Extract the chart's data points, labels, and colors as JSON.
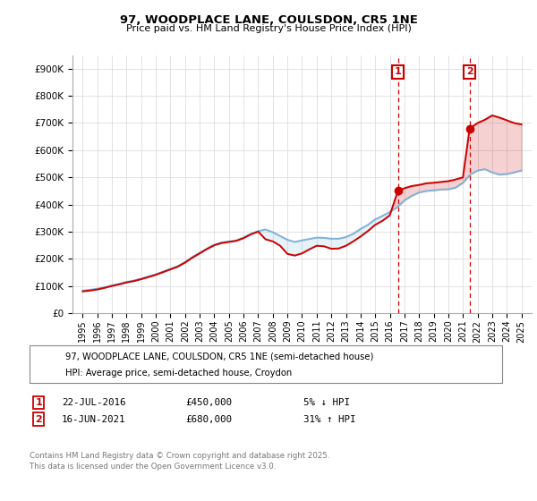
{
  "title1": "97, WOODPLACE LANE, COULSDON, CR5 1NE",
  "title2": "Price paid vs. HM Land Registry's House Price Index (HPI)",
  "legend1": "97, WOODPLACE LANE, COULSDON, CR5 1NE (semi-detached house)",
  "legend2": "HPI: Average price, semi-detached house, Croydon",
  "footnote": "Contains HM Land Registry data © Crown copyright and database right 2025.\nThis data is licensed under the Open Government Licence v3.0.",
  "annotation1_label": "1",
  "annotation1_date": "22-JUL-2016",
  "annotation1_price": "£450,000",
  "annotation1_hpi": "5% ↓ HPI",
  "annotation2_label": "2",
  "annotation2_date": "16-JUN-2021",
  "annotation2_price": "£680,000",
  "annotation2_hpi": "31% ↑ HPI",
  "line_color_property": "#cc0000",
  "line_color_hpi": "#7fb2d9",
  "vline_color": "#cc0000",
  "marker_color": "#cc0000",
  "ylim": [
    0,
    950000
  ],
  "yticks": [
    0,
    100000,
    200000,
    300000,
    400000,
    500000,
    600000,
    700000,
    800000,
    900000
  ],
  "ytick_labels": [
    "£0",
    "£100K",
    "£200K",
    "£300K",
    "£400K",
    "£500K",
    "£600K",
    "£700K",
    "£800K",
    "£900K"
  ],
  "sale1_year": 2016.55,
  "sale1_price": 450000,
  "sale2_year": 2021.46,
  "sale2_price": 680000,
  "hpi_years": [
    1995,
    1995.5,
    1996,
    1996.5,
    1997,
    1997.5,
    1998,
    1998.5,
    1999,
    1999.5,
    2000,
    2000.5,
    2001,
    2001.5,
    2002,
    2002.5,
    2003,
    2003.5,
    2004,
    2004.5,
    2005,
    2005.5,
    2006,
    2006.5,
    2007,
    2007.5,
    2008,
    2008.5,
    2009,
    2009.5,
    2010,
    2010.5,
    2011,
    2011.5,
    2012,
    2012.5,
    2013,
    2013.5,
    2014,
    2014.5,
    2015,
    2015.5,
    2016,
    2016.5,
    2017,
    2017.5,
    2018,
    2018.5,
    2019,
    2019.5,
    2020,
    2020.5,
    2021,
    2021.5,
    2022,
    2022.5,
    2023,
    2023.5,
    2024,
    2024.5,
    2025
  ],
  "hpi_values": [
    83000,
    86000,
    90000,
    95000,
    102000,
    108000,
    115000,
    120000,
    127000,
    135000,
    143000,
    153000,
    163000,
    173000,
    188000,
    207000,
    222000,
    238000,
    252000,
    260000,
    264000,
    268000,
    278000,
    292000,
    302000,
    308000,
    298000,
    284000,
    270000,
    262000,
    268000,
    273000,
    278000,
    277000,
    274000,
    274000,
    280000,
    292000,
    310000,
    325000,
    345000,
    358000,
    372000,
    390000,
    415000,
    432000,
    444000,
    450000,
    452000,
    455000,
    456000,
    462000,
    480000,
    510000,
    525000,
    530000,
    518000,
    510000,
    512000,
    518000,
    525000
  ],
  "prop_years": [
    1995,
    1995.5,
    1996,
    1996.5,
    1997,
    1997.5,
    1998,
    1998.5,
    1999,
    1999.5,
    2000,
    2000.5,
    2001,
    2001.5,
    2002,
    2002.5,
    2003,
    2003.5,
    2004,
    2004.5,
    2005,
    2005.5,
    2006,
    2006.5,
    2007,
    2007.5,
    2008,
    2008.5,
    2009,
    2009.5,
    2010,
    2010.5,
    2011,
    2011.5,
    2012,
    2012.5,
    2013,
    2013.5,
    2014,
    2014.5,
    2015,
    2015.5,
    2016,
    2016.55,
    2017,
    2017.5,
    2018,
    2018.5,
    2019,
    2019.5,
    2020,
    2020.5,
    2021,
    2021.46,
    2022,
    2022.5,
    2023,
    2023.5,
    2024,
    2024.5,
    2025
  ],
  "prop_values": [
    80000,
    83000,
    87000,
    93000,
    100000,
    106000,
    113000,
    118000,
    125000,
    133000,
    141000,
    151000,
    161000,
    171000,
    186000,
    204000,
    220000,
    236000,
    250000,
    258000,
    262000,
    266000,
    276000,
    290000,
    300000,
    272000,
    264000,
    248000,
    218000,
    212000,
    220000,
    235000,
    248000,
    246000,
    237000,
    238000,
    248000,
    264000,
    282000,
    302000,
    325000,
    340000,
    360000,
    450000,
    460000,
    468000,
    472000,
    478000,
    480000,
    483000,
    486000,
    492000,
    500000,
    680000,
    700000,
    712000,
    728000,
    720000,
    710000,
    700000,
    695000
  ]
}
